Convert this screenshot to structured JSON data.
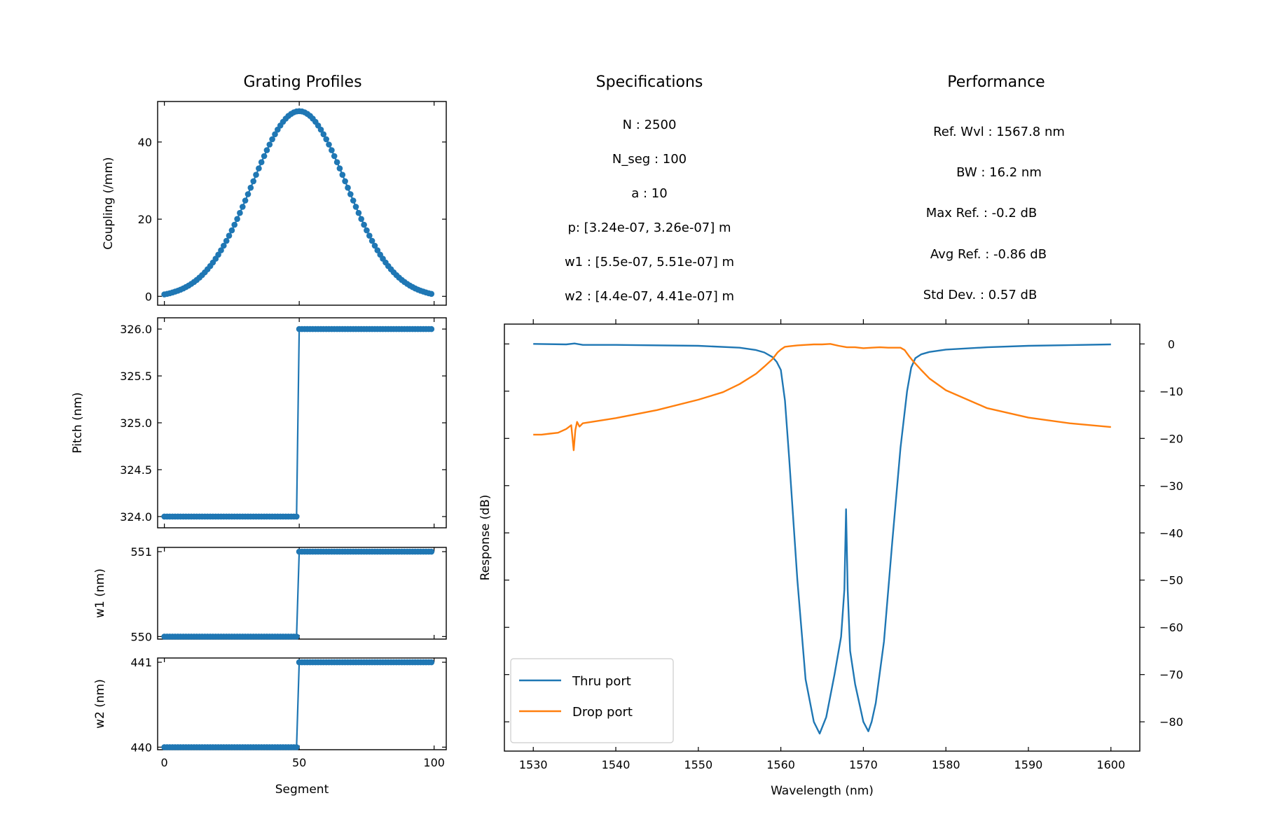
{
  "titles": {
    "profiles": "Grating Profiles",
    "specs": "Specifications",
    "perf": "Performance"
  },
  "specs": [
    "N : 2500",
    "N_seg : 100",
    "a : 10",
    "p: [3.24e-07, 3.26e-07] m",
    "w1 : [5.5e-07, 5.51e-07] m",
    "w2 : [4.4e-07, 4.41e-07] m"
  ],
  "performance": [
    "Ref. Wvl : 1567.8 nm",
    "BW : 16.2 nm",
    "Max Ref. : -0.2 dB",
    "Avg Ref. : -0.86 dB",
    "Std Dev. : 0.57 dB"
  ],
  "colors": {
    "thru": "#1f77b4",
    "drop": "#ff7f0e",
    "profile": "#1f77b4"
  },
  "chart_data": [
    {
      "id": "coupling",
      "type": "line",
      "markers": true,
      "ylabel": "Coupling (/mm)",
      "xlim": [
        -2.5,
        104.5
      ],
      "ylim": [
        -2.3,
        50.5
      ],
      "yticks": [
        0,
        20,
        40
      ],
      "ytick_labels": [
        "0",
        "20",
        "40"
      ],
      "xticks": [
        0,
        50,
        100
      ],
      "xtick_labels_shown": false,
      "x_range": [
        0,
        99
      ],
      "segments": 100,
      "profile": "gaussian",
      "peak": 48,
      "center": 50,
      "sigma": 17.5,
      "edge_value": 0.5
    },
    {
      "id": "pitch",
      "type": "line",
      "markers": true,
      "ylabel": "Pitch (nm)",
      "xlim": [
        -2.5,
        104.5
      ],
      "ylim": [
        323.88,
        326.12
      ],
      "yticks": [
        324.0,
        324.5,
        325.0,
        325.5,
        326.0
      ],
      "ytick_labels": [
        "324.0",
        "324.5",
        "325.0",
        "325.5",
        "326.0"
      ],
      "xticks": [
        0,
        50,
        100
      ],
      "xtick_labels_shown": false,
      "x_range": [
        0,
        99
      ],
      "segments": 100,
      "step_at": 50,
      "low": 324.0,
      "high": 326.0
    },
    {
      "id": "w1",
      "type": "line",
      "markers": true,
      "ylabel": "w1 (nm)",
      "xlim": [
        -2.5,
        104.5
      ],
      "ylim": [
        549.97,
        551.05
      ],
      "yticks": [
        550,
        551
      ],
      "ytick_labels": [
        "550",
        "551"
      ],
      "xticks": [
        0,
        50,
        100
      ],
      "xtick_labels_shown": false,
      "x_range": [
        0,
        99
      ],
      "segments": 100,
      "step_at": 50,
      "low": 550,
      "high": 551
    },
    {
      "id": "w2",
      "type": "line",
      "markers": true,
      "ylabel": "w2 (nm)",
      "xlabel": "Segment",
      "xlim": [
        -2.5,
        104.5
      ],
      "ylim": [
        439.97,
        441.05
      ],
      "yticks": [
        440,
        441
      ],
      "ytick_labels": [
        "440",
        "441"
      ],
      "xticks": [
        0,
        50,
        100
      ],
      "xtick_labels": [
        "0",
        "50",
        "100"
      ],
      "x_range": [
        0,
        99
      ],
      "segments": 100,
      "step_at": 50,
      "low": 440,
      "high": 441
    },
    {
      "id": "response",
      "type": "line",
      "xlabel": "Wavelength (nm)",
      "ylabel": "Response (dB)",
      "xlim": [
        1526.5,
        1603.5
      ],
      "ylim": [
        -86.2,
        4.2
      ],
      "xticks": [
        1530,
        1540,
        1550,
        1560,
        1570,
        1580,
        1590,
        1600
      ],
      "xtick_labels": [
        "1530",
        "1540",
        "1550",
        "1560",
        "1570",
        "1580",
        "1590",
        "1600"
      ],
      "yticks": [
        0,
        -10,
        -20,
        -30,
        -40,
        -50,
        -60,
        -70,
        -80
      ],
      "ytick_labels": [
        "0",
        "−10",
        "−20",
        "−30",
        "−40",
        "−50",
        "−60",
        "−70",
        "−80"
      ],
      "y_axis_side": "right",
      "legend": {
        "position": "lower-left",
        "entries": [
          "Thru port",
          "Drop port"
        ]
      },
      "series": [
        {
          "name": "Thru port",
          "color": "#1f77b4",
          "x": [
            1530,
            1534,
            1535,
            1536,
            1540,
            1550,
            1555,
            1557,
            1558,
            1559,
            1559.5,
            1560,
            1560.5,
            1561,
            1562,
            1563,
            1564,
            1564.7,
            1565.5,
            1566.5,
            1567.3,
            1567.7,
            1567.9,
            1568.1,
            1568.4,
            1569,
            1570,
            1570.6,
            1571,
            1571.5,
            1572.5,
            1573.5,
            1574.5,
            1575.3,
            1575.8,
            1576.3,
            1577,
            1578,
            1580,
            1585,
            1590,
            1600
          ],
          "y": [
            0,
            -0.1,
            0.1,
            -0.2,
            -0.2,
            -0.4,
            -0.8,
            -1.3,
            -1.8,
            -2.8,
            -3.8,
            -5.5,
            -12,
            -24,
            -50,
            -71,
            -80,
            -82.5,
            -79,
            -70,
            -62,
            -52,
            -35,
            -52,
            -65,
            -72,
            -80,
            -82,
            -80,
            -76,
            -63,
            -42,
            -22,
            -10,
            -5,
            -3,
            -2.2,
            -1.7,
            -1.2,
            -0.7,
            -0.4,
            -0.1
          ]
        },
        {
          "name": "Drop port",
          "color": "#ff7f0e",
          "x": [
            1530,
            1531,
            1532,
            1533,
            1534,
            1534.6,
            1534.9,
            1535.1,
            1535.3,
            1535.6,
            1536,
            1540,
            1545,
            1550,
            1553,
            1555,
            1557,
            1558,
            1559,
            1559.6,
            1560,
            1560.5,
            1561,
            1562,
            1563,
            1564,
            1565,
            1566,
            1567,
            1568,
            1569,
            1570,
            1571,
            1572,
            1573,
            1574,
            1574.5,
            1575,
            1575.5,
            1576,
            1577,
            1578,
            1580,
            1585,
            1590,
            1595,
            1600
          ],
          "y": [
            -19.2,
            -19.2,
            -19,
            -18.8,
            -18,
            -17.2,
            -22.5,
            -18.2,
            -16.5,
            -17.5,
            -16.8,
            -15.7,
            -14,
            -11.8,
            -10.2,
            -8.5,
            -6.3,
            -4.8,
            -3.2,
            -1.8,
            -1.2,
            -0.6,
            -0.5,
            -0.3,
            -0.2,
            -0.1,
            -0.1,
            0,
            -0.4,
            -0.7,
            -0.7,
            -0.9,
            -0.8,
            -0.7,
            -0.8,
            -0.8,
            -0.8,
            -1.3,
            -2.5,
            -3.6,
            -5.5,
            -7.3,
            -9.8,
            -13.6,
            -15.6,
            -16.8,
            -17.6
          ]
        }
      ]
    }
  ]
}
